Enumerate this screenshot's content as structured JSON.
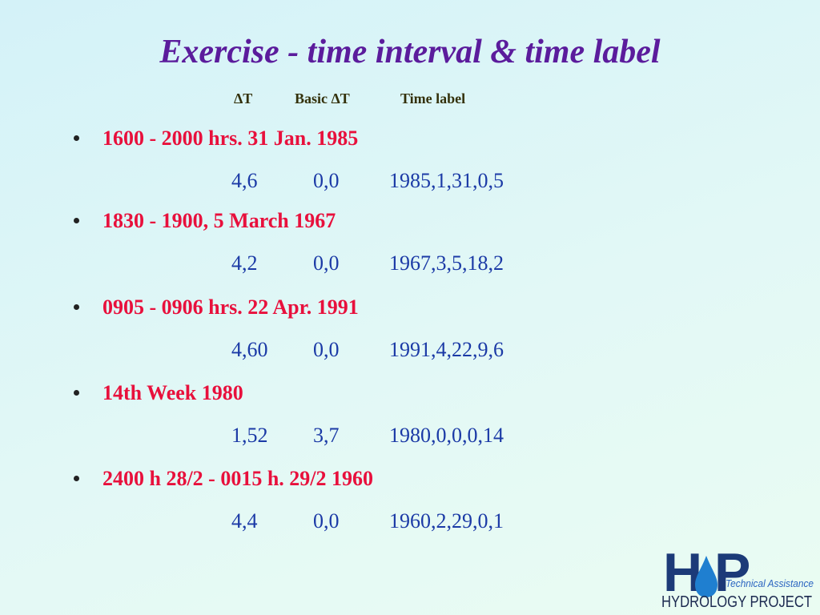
{
  "header": {
    "title": "Exercise - time interval & time label",
    "columns": [
      "ΔT",
      "Basic ΔT",
      "Time label"
    ]
  },
  "items": [
    {
      "text": "1600 - 2000 hrs. 31 Jan. 1985",
      "values": [
        "4,6",
        "0,0",
        "1985,1,31,0,5"
      ]
    },
    {
      "text": "1830 - 1900, 5 March 1967",
      "values": [
        "4,2",
        "0,0",
        "1967,3,5,18,2"
      ]
    },
    {
      "text": "0905 - 0906 hrs. 22 Apr. 1991",
      "values": [
        "4,60",
        "0,0",
        "1991,4,22,9,6"
      ]
    },
    {
      "text": "14th Week 1980",
      "values": [
        "1,52",
        "3,7",
        "1980,0,0,0,14"
      ]
    },
    {
      "text": "2400 h 28/2 - 0015 h. 29/2 1960",
      "values": [
        "4,4",
        "0,0",
        "1960,2,29,0,1"
      ]
    }
  ],
  "logo": {
    "letters": [
      "H",
      "P"
    ],
    "tagline": "Technical Assistance",
    "name": "HYDROLOGY PROJECT"
  }
}
